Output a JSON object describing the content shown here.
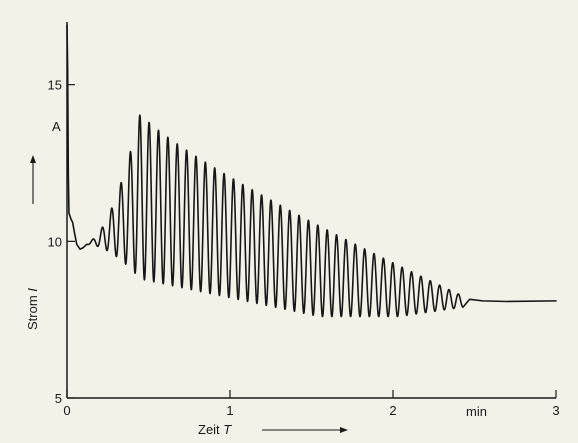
{
  "chart_data": {
    "type": "line",
    "xlabel": "Zeit",
    "xlabel_symbol": "T",
    "x_unit": "min",
    "ylabel": "Strom",
    "ylabel_symbol": "I",
    "y_unit": "A",
    "xlim": [
      0,
      3
    ],
    "ylim": [
      5,
      17
    ],
    "xticks": [
      0,
      1,
      2,
      3
    ],
    "yticks": [
      5,
      10,
      15
    ],
    "grid": false,
    "colors": {
      "line": "#161616",
      "axis": "#1a1a1a",
      "background": "#f3f1e8"
    },
    "series": [
      {
        "oscillation": {
          "start_min": 0.13,
          "end_min": 2.43,
          "cycles": 40,
          "peak_of_amplitude_min": 0.45,
          "max_peak_A": 14.1,
          "trough_near_peak_A": 8.8,
          "late_trough_A": 7.6
        },
        "initial_spike_A": 16.9,
        "steady_state_A": 8.1,
        "points": [
          [
            0.0,
            16.9
          ],
          [
            0.01,
            10.8
          ],
          [
            0.03,
            10.6
          ],
          [
            0.05,
            9.8
          ],
          [
            0.08,
            9.9
          ],
          [
            0.13,
            10.0
          ],
          [
            0.2,
            10.6
          ],
          [
            0.3,
            12.8
          ],
          [
            0.45,
            14.1
          ],
          [
            0.55,
            13.9
          ],
          [
            0.7,
            13.3
          ],
          [
            0.9,
            12.5
          ],
          [
            1.0,
            12.0
          ],
          [
            1.2,
            11.0
          ],
          [
            1.5,
            9.9
          ],
          [
            1.8,
            9.0
          ],
          [
            2.0,
            8.5
          ],
          [
            2.2,
            8.3
          ],
          [
            2.43,
            8.3
          ],
          [
            2.5,
            8.1
          ],
          [
            3.0,
            8.1
          ]
        ]
      }
    ]
  }
}
